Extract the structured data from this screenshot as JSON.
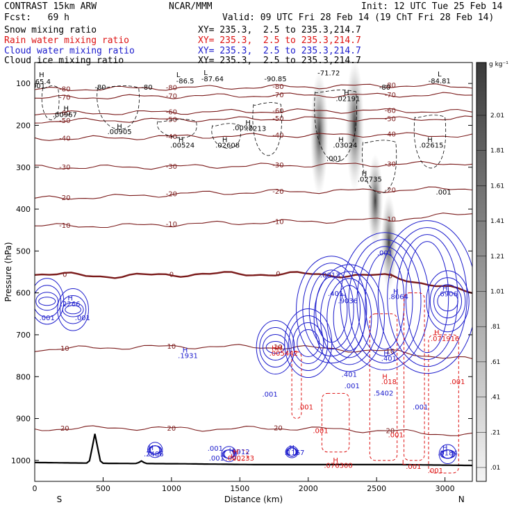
{
  "header": {
    "model": "CONTRAST 15km ARW",
    "center": "NCAR/MMM",
    "init": "Init: 12 UTC Tue 25 Feb 14",
    "fcst": "Fcst:   69 h",
    "valid": "Valid: 09 UTC Fri 28 Feb 14 (19 ChT Fri 28 Feb 14)"
  },
  "fields": [
    {
      "name": "Snow mixing ratio",
      "xy": "XY= 235.3,  2.5 to 235.3,214.7",
      "color": "#000000"
    },
    {
      "name": "Rain water mixing ratio",
      "xy": "XY= 235.3,  2.5 to 235.3,214.7",
      "color": "#dd1111"
    },
    {
      "name": "Cloud water mixing ratio",
      "xy": "XY= 235.3,  2.5 to 235.3,214.7",
      "color": "#1a1acc"
    },
    {
      "name": "Cloud ice mixing ratio",
      "xy": "XY= 235.3,  2.5 to 235.3,214.7",
      "color": "#000000"
    }
  ],
  "colorbar": {
    "unit": "g kg⁻¹",
    "labels": [
      "2.01",
      "1.81",
      "1.61",
      "1.41",
      "1.21",
      "1.01",
      ".81",
      ".61",
      ".41",
      ".21",
      ".01"
    ]
  },
  "chart_data": {
    "type": "contour",
    "xlabel": "Distance (km)",
    "ylabel": "Pressure (hPa)",
    "xlim": [
      0,
      3200
    ],
    "ylim": [
      1050,
      50
    ],
    "x_ticks": [
      0,
      500,
      1000,
      1500,
      2000,
      2500,
      3000
    ],
    "y_ticks": [
      100,
      200,
      300,
      400,
      500,
      600,
      700,
      800,
      900,
      1000
    ],
    "endpoints": {
      "left": "S",
      "right": "N"
    },
    "temperature_isotherms": [
      {
        "t": 20,
        "p": [
          925,
          922,
          925,
          923,
          930,
          940
        ]
      },
      {
        "t": 10,
        "p": [
          735,
          730,
          728,
          730,
          740,
          760
        ]
      },
      {
        "t": 0,
        "p": [
          555,
          560,
          555,
          555,
          560,
          600
        ]
      },
      {
        "t": -10,
        "p": [
          440,
          440,
          435,
          430,
          425,
          410
        ]
      },
      {
        "t": -20,
        "p": [
          375,
          370,
          362,
          358,
          355,
          350
        ]
      },
      {
        "t": -30,
        "p": [
          300,
          300,
          298,
          295,
          293,
          290
        ]
      },
      {
        "t": -40,
        "p": [
          232,
          230,
          226,
          224,
          222,
          225
        ]
      },
      {
        "t": -50,
        "p": [
          190,
          188,
          186,
          184,
          185,
          183
        ]
      },
      {
        "t": -60,
        "p": [
          172,
          170,
          168,
          166,
          165,
          168
        ]
      },
      {
        "t": -70,
        "p": [
          135,
          132,
          130,
          128,
          128,
          127
        ]
      },
      {
        "t": -80,
        "p": [
          115,
          112,
          110,
          108,
          105,
          108
        ]
      }
    ],
    "isotherm_x": [
      0,
      600,
      1200,
      1900,
      2600,
      3200
    ],
    "snow_maxima": [
      {
        "x": 2080,
        "p": 220,
        "value": 1.4
      },
      {
        "x": 2340,
        "p": 200,
        "value": 1.6
      },
      {
        "x": 2490,
        "p": 380,
        "value": 0.5
      },
      {
        "x": 2590,
        "p": 480,
        "value": 0.6
      }
    ],
    "surface_pressure_hpa": [
      1005,
      1007,
      1008,
      1010,
      1010,
      1010,
      1012
    ],
    "annotations": [
      {
        "text": "H",
        "x": 50,
        "p": 85,
        "color": "black"
      },
      {
        "text": "65.4",
        "x": 60,
        "p": 101,
        "color": "black"
      },
      {
        "text": ".001",
        "x": 20,
        "p": 111,
        "color": "black"
      },
      {
        "text": "-80",
        "x": 480,
        "p": 115,
        "color": "black"
      },
      {
        "text": "-80",
        "x": 820,
        "p": 115,
        "color": "black"
      },
      {
        "text": "L",
        "x": 1050,
        "p": 85,
        "color": "black"
      },
      {
        "text": "-86.5",
        "x": 1100,
        "p": 100,
        "color": "black"
      },
      {
        "text": "-87.64",
        "x": 1300,
        "p": 95,
        "color": "black"
      },
      {
        "text": "L",
        "x": 1250,
        "p": 80,
        "color": "black"
      },
      {
        "text": "-90.85",
        "x": 1760,
        "p": 95,
        "color": "black"
      },
      {
        "text": "-71.72",
        "x": 2150,
        "p": 81,
        "color": "black"
      },
      {
        "text": "L",
        "x": 2960,
        "p": 83,
        "color": "black"
      },
      {
        "text": "-84.81",
        "x": 2960,
        "p": 100,
        "color": "black"
      },
      {
        "text": "-80",
        "x": 2560,
        "p": 115,
        "color": "black"
      },
      {
        "text": "H",
        "x": 230,
        "p": 165,
        "color": "black"
      },
      {
        "text": ".00967",
        "x": 220,
        "p": 180,
        "color": "black"
      },
      {
        "text": "H",
        "x": 2280,
        "p": 128,
        "color": "black"
      },
      {
        "text": ".02191",
        "x": 2290,
        "p": 142,
        "color": "black"
      },
      {
        "text": "H",
        "x": 620,
        "p": 208,
        "color": "black"
      },
      {
        "text": ".00905",
        "x": 620,
        "p": 221,
        "color": "black"
      },
      {
        "text": ".0097",
        "x": 1520,
        "p": 212,
        "color": "black"
      },
      {
        "text": "H",
        "x": 1560,
        "p": 199,
        "color": "black"
      },
      {
        "text": ".0213",
        "x": 1620,
        "p": 213,
        "color": "black"
      },
      {
        "text": "H",
        "x": 1070,
        "p": 240,
        "color": "black"
      },
      {
        "text": ".00524",
        "x": 1080,
        "p": 253,
        "color": "black"
      },
      {
        "text": "H",
        "x": 1390,
        "p": 240,
        "color": "black"
      },
      {
        "text": ".02608",
        "x": 1410,
        "p": 253,
        "color": "black"
      },
      {
        "text": "H",
        "x": 2240,
        "p": 240,
        "color": "black"
      },
      {
        "text": ".03024",
        "x": 2270,
        "p": 253,
        "color": "black"
      },
      {
        "text": "H",
        "x": 2890,
        "p": 240,
        "color": "black"
      },
      {
        "text": ".02615",
        "x": 2900,
        "p": 253,
        "color": "black"
      },
      {
        "text": ".001",
        "x": 2190,
        "p": 285,
        "color": "black"
      },
      {
        "text": "H",
        "x": 2410,
        "p": 320,
        "color": "black"
      },
      {
        "text": ".02735",
        "x": 2450,
        "p": 334,
        "color": "black"
      },
      {
        "text": ".001",
        "x": 2990,
        "p": 365,
        "color": "black"
      },
      {
        "text": ".001",
        "x": 2560,
        "p": 510,
        "color": "blue"
      },
      {
        "text": ".0013",
        "x": 2160,
        "p": 563,
        "color": "blue"
      },
      {
        "text": ".401",
        "x": 2200,
        "p": 607,
        "color": "blue"
      },
      {
        "text": "H",
        "x": 2260,
        "p": 612,
        "color": "blue"
      },
      {
        "text": ".9036",
        "x": 2290,
        "p": 625,
        "color": "blue"
      },
      {
        "text": "H",
        "x": 2640,
        "p": 602,
        "color": "blue"
      },
      {
        "text": ".8064",
        "x": 2660,
        "p": 615,
        "color": "blue"
      },
      {
        "text": "H",
        "x": 3000,
        "p": 595,
        "color": "blue"
      },
      {
        "text": ".6906",
        "x": 3020,
        "p": 608,
        "color": "blue"
      },
      {
        "text": "H",
        "x": 260,
        "p": 618,
        "color": "blue"
      },
      {
        "text": ".2266",
        "x": 260,
        "p": 632,
        "color": "blue"
      },
      {
        "text": ".001",
        "x": 90,
        "p": 665,
        "color": "blue"
      },
      {
        "text": ".001",
        "x": 350,
        "p": 665,
        "color": "blue"
      },
      {
        "text": "H",
        "x": 1100,
        "p": 742,
        "color": "blue"
      },
      {
        "text": ".1931",
        "x": 1120,
        "p": 756,
        "color": "blue"
      },
      {
        "text": "HH",
        "x": 1770,
        "p": 737,
        "color": "red"
      },
      {
        "text": ".005442",
        "x": 1820,
        "p": 750,
        "color": "red"
      },
      {
        "text": "H",
        "x": 2940,
        "p": 700,
        "color": "red"
      },
      {
        "text": ".071916",
        "x": 3000,
        "p": 715,
        "color": "red"
      },
      {
        "text": "H",
        "x": 2570,
        "p": 750,
        "color": "blue"
      },
      {
        "text": ".401",
        "x": 2590,
        "p": 762,
        "color": "blue"
      },
      {
        "text": ".401",
        "x": 2300,
        "p": 800,
        "color": "blue"
      },
      {
        "text": "H",
        "x": 2560,
        "p": 805,
        "color": "red"
      },
      {
        "text": ".018",
        "x": 2590,
        "p": 818,
        "color": "red"
      },
      {
        "text": ".001",
        "x": 2320,
        "p": 828,
        "color": "blue"
      },
      {
        "text": ".5402",
        "x": 2550,
        "p": 845,
        "color": "blue"
      },
      {
        "text": ".001",
        "x": 1720,
        "p": 848,
        "color": "blue"
      },
      {
        "text": ".001",
        "x": 1980,
        "p": 878,
        "color": "red"
      },
      {
        "text": ".001",
        "x": 2820,
        "p": 878,
        "color": "blue"
      },
      {
        "text": ".001",
        "x": 3090,
        "p": 818,
        "color": "red"
      },
      {
        "text": ".001",
        "x": 2090,
        "p": 935,
        "color": "red"
      },
      {
        "text": ".001",
        "x": 2640,
        "p": 945,
        "color": "red"
      },
      {
        "text": "H",
        "x": 850,
        "p": 975,
        "color": "blue"
      },
      {
        "text": ".2486",
        "x": 870,
        "p": 990,
        "color": "blue"
      },
      {
        "text": ".001",
        "x": 1320,
        "p": 977,
        "color": "blue"
      },
      {
        "text": ".001",
        "x": 1330,
        "p": 1000,
        "color": "blue"
      },
      {
        "text": "H",
        "x": 1440,
        "p": 982,
        "color": "blue"
      },
      {
        "text": ".3912",
        "x": 1500,
        "p": 985,
        "color": "blue"
      },
      {
        "text": "H",
        "x": 1470,
        "p": 985,
        "color": "red"
      },
      {
        "text": ".000233",
        "x": 1500,
        "p": 1000,
        "color": "red"
      },
      {
        "text": "H",
        "x": 1880,
        "p": 975,
        "color": "blue"
      },
      {
        "text": ".1167",
        "x": 1900,
        "p": 987,
        "color": "blue"
      },
      {
        "text": "H",
        "x": 2200,
        "p": 1005,
        "color": "red"
      },
      {
        "text": ".076300",
        "x": 2220,
        "p": 1018,
        "color": "red"
      },
      {
        "text": "H",
        "x": 3000,
        "p": 975,
        "color": "blue"
      },
      {
        "text": ".0184",
        "x": 3020,
        "p": 988,
        "color": "blue"
      },
      {
        "text": ".001",
        "x": 2770,
        "p": 1020,
        "color": "red"
      },
      {
        "text": ".001",
        "x": 2930,
        "p": 1030,
        "color": "red"
      },
      {
        "text": "L",
        "x": 2700,
        "p": 1010,
        "color": "red"
      }
    ]
  }
}
